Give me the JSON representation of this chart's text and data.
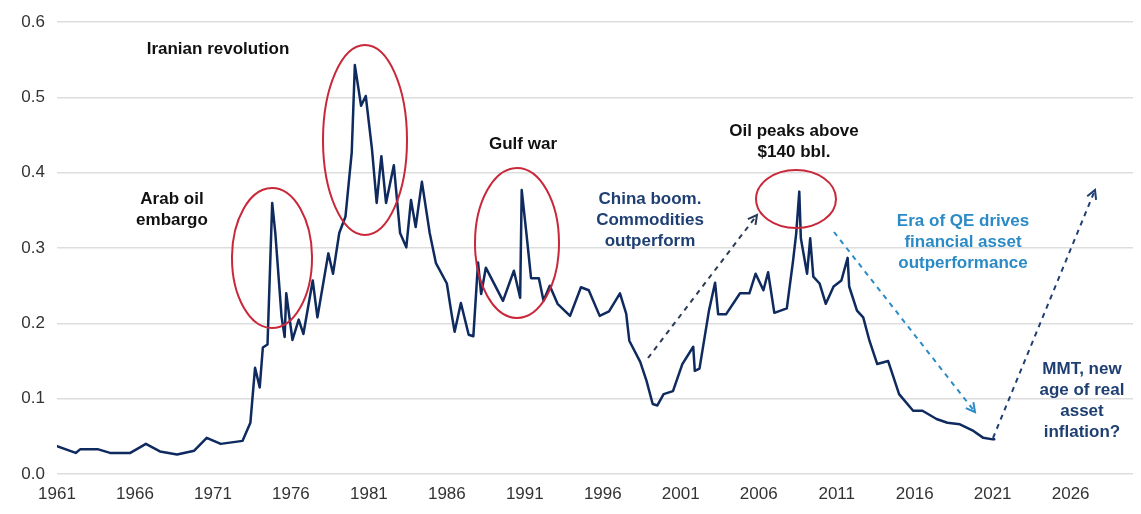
{
  "chart_data": {
    "type": "line",
    "x": [
      1961,
      1962.2,
      1962.5,
      1963.6,
      1964.4,
      1965.7,
      1966.7,
      1967.6,
      1968.7,
      1969.8,
      1970.6,
      1971.5,
      1972.9,
      1973.4,
      1973.7,
      1974.0,
      1974.2,
      1974.5,
      1974.8,
      1975.0,
      1975.4,
      1975.6,
      1975.7,
      1976.1,
      1976.5,
      1976.8,
      1977.4,
      1977.7,
      1978.4,
      1978.7,
      1979.1,
      1979.5,
      1979.9,
      1980.1,
      1980.5,
      1980.8,
      1981.2,
      1981.5,
      1981.8,
      1982.1,
      1982.6,
      1983.0,
      1983.4,
      1983.7,
      1984.0,
      1984.4,
      1984.9,
      1985.3,
      1986.0,
      1986.3,
      1986.5,
      1986.9,
      1987.4,
      1987.7,
      1988.0,
      1988.2,
      1988.5,
      1989.6,
      1990.3,
      1990.7,
      1990.8,
      1991.1,
      1991.4,
      1991.9,
      1992.2,
      1992.6,
      1993.1,
      1993.9,
      1994.6,
      1995.1,
      1995.8,
      1996.4,
      1997.1,
      1997.5,
      1997.7,
      1998.4,
      1998.8,
      1999.2,
      1999.5,
      1999.9,
      2000.5,
      2001.1,
      2001.8,
      2001.9,
      2002.2,
      2002.8,
      2003.2,
      2003.4,
      2003.9,
      2004.8,
      2005.4,
      2005.8,
      2006.3,
      2006.6,
      2007.0,
      2007.8,
      2008.2,
      2008.4,
      2008.6,
      2008.7,
      2009.1,
      2009.3,
      2009.5,
      2009.9,
      2010.3,
      2010.8,
      2011.3,
      2011.7,
      2011.8,
      2012.3,
      2012.7,
      2013.1,
      2013.6,
      2014.3,
      2015.0,
      2015.9,
      2016.5,
      2017.4,
      2018.1,
      2018.9,
      2019.7,
      2020.4,
      2021.0,
      2021.1
    ],
    "series": [
      {
        "color": "#0e2a5e",
        "values": [
          0.037,
          0.028,
          0.033,
          0.033,
          0.028,
          0.028,
          0.04,
          0.03,
          0.026,
          0.031,
          0.048,
          0.04,
          0.044,
          0.068,
          0.141,
          0.115,
          0.168,
          0.172,
          0.36,
          0.32,
          0.209,
          0.182,
          0.24,
          0.178,
          0.205,
          0.186,
          0.257,
          0.208,
          0.293,
          0.266,
          0.32,
          0.342,
          0.427,
          0.543,
          0.489,
          0.502,
          0.431,
          0.36,
          0.422,
          0.36,
          0.41,
          0.32,
          0.301,
          0.364,
          0.328,
          0.388,
          0.32,
          0.28,
          0.253,
          0.213,
          0.189,
          0.227,
          0.185,
          0.183,
          0.281,
          0.239,
          0.274,
          0.23,
          0.27,
          0.234,
          0.377,
          0.32,
          0.26,
          0.26,
          0.23,
          0.25,
          0.226,
          0.21,
          0.248,
          0.244,
          0.21,
          0.216,
          0.24,
          0.213,
          0.177,
          0.149,
          0.124,
          0.093,
          0.091,
          0.106,
          0.11,
          0.146,
          0.169,
          0.137,
          0.14,
          0.216,
          0.254,
          0.212,
          0.212,
          0.24,
          0.24,
          0.266,
          0.244,
          0.268,
          0.214,
          0.22,
          0.283,
          0.319,
          0.375,
          0.313,
          0.266,
          0.313,
          0.262,
          0.253,
          0.226,
          0.249,
          0.257,
          0.287,
          0.249,
          0.217,
          0.208,
          0.177,
          0.146,
          0.15,
          0.106,
          0.084,
          0.084,
          0.073,
          0.068,
          0.066,
          0.058,
          0.048,
          0.046,
          0.046
        ]
      }
    ],
    "xlim": [
      1961,
      2030
    ],
    "xticks": [
      1961,
      1966,
      1971,
      1976,
      1981,
      1986,
      1991,
      1996,
      2001,
      2006,
      2011,
      2016,
      2021,
      2026
    ],
    "ylim": [
      0,
      0.6
    ],
    "yticks": [
      {
        "value": 0,
        "label": "0.0"
      },
      0.1,
      0.2,
      0.3,
      0.4,
      0.5,
      0.6
    ],
    "grid": "y",
    "legend": false,
    "marker": "none",
    "line_style": "solid",
    "annotations": [
      "Arab oil embargo",
      "Iranian revolution",
      "Gulf war",
      "Oil peaks above $140 bbl.",
      "China boom. Commodities outperform",
      "Era of QE drives financial asset outperformance",
      "MMT, new age of real asset inflation?"
    ]
  }
}
